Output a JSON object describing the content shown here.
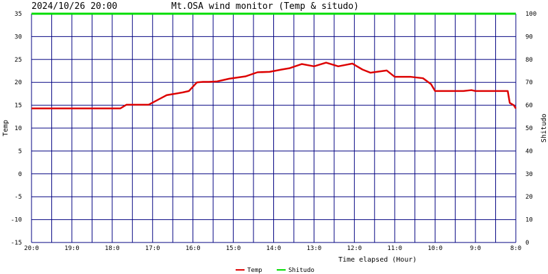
{
  "header": {
    "timestamp": "2024/10/26 20:00",
    "title": "Mt.OSA wind monitor (Temp & situdo)"
  },
  "colors": {
    "background": "#ffffff",
    "plot_background": "#ffffff",
    "grid": "#000080",
    "temp": "#dd0000",
    "shitudo": "#00dd00",
    "text": "#000000"
  },
  "chart_data": {
    "type": "line",
    "title": "Mt.OSA wind monitor (Temp & situdo)",
    "xlabel": "Time elapsed (Hour)",
    "ylabel_left": "Temp",
    "ylabel_right": "Shitudo",
    "ylim_left": [
      -15,
      35
    ],
    "ylim_right": [
      0,
      100
    ],
    "yticks_left": [
      "35",
      "30",
      "25",
      "20",
      "15",
      "10",
      "5",
      "0",
      "-5",
      "-10",
      "-15"
    ],
    "yticks_right": [
      "100",
      "90",
      "80",
      "70",
      "60",
      "50",
      "40",
      "30",
      "20",
      "10",
      "0"
    ],
    "xticks": [
      "20:0",
      "19:0",
      "18:0",
      "17:0",
      "16:0",
      "15:0",
      "14:0",
      "13:0",
      "12:0",
      "11:0",
      "10:0",
      "9:0",
      "8:0"
    ],
    "xlim": [
      0,
      12
    ],
    "grid": true,
    "legend_placement": "bottom-center",
    "series": [
      {
        "name": "Temp",
        "axis": "left",
        "x": [
          0,
          2.2,
          2.35,
          2.9,
          3.2,
          3.35,
          3.75,
          3.9,
          4.1,
          4.25,
          4.4,
          4.6,
          4.9,
          5.3,
          5.6,
          5.9,
          6.2,
          6.4,
          6.7,
          7.0,
          7.3,
          7.6,
          7.95,
          8.2,
          8.4,
          8.8,
          9.0,
          9.4,
          9.7,
          9.9,
          10.0,
          10.25,
          10.5,
          10.7,
          10.9,
          11.0,
          11.2,
          11.35,
          11.5,
          11.65,
          11.8,
          11.85,
          11.95,
          12.0
        ],
        "values": [
          14.3,
          14.3,
          15.1,
          15.1,
          16.5,
          17.2,
          17.8,
          18.1,
          20.0,
          20.1,
          20.1,
          20.2,
          20.8,
          21.3,
          22.2,
          22.3,
          22.8,
          23.1,
          24.0,
          23.5,
          24.3,
          23.5,
          24.1,
          22.8,
          22.1,
          22.6,
          21.2,
          21.2,
          20.9,
          19.6,
          18.1,
          18.1,
          18.1,
          18.1,
          18.3,
          18.1,
          18.1,
          18.1,
          18.1,
          18.1,
          18.1,
          15.5,
          15.0,
          14.3
        ]
      },
      {
        "name": "Shitudo",
        "axis": "right",
        "x": [
          0,
          12
        ],
        "values": [
          100,
          100
        ]
      }
    ]
  }
}
